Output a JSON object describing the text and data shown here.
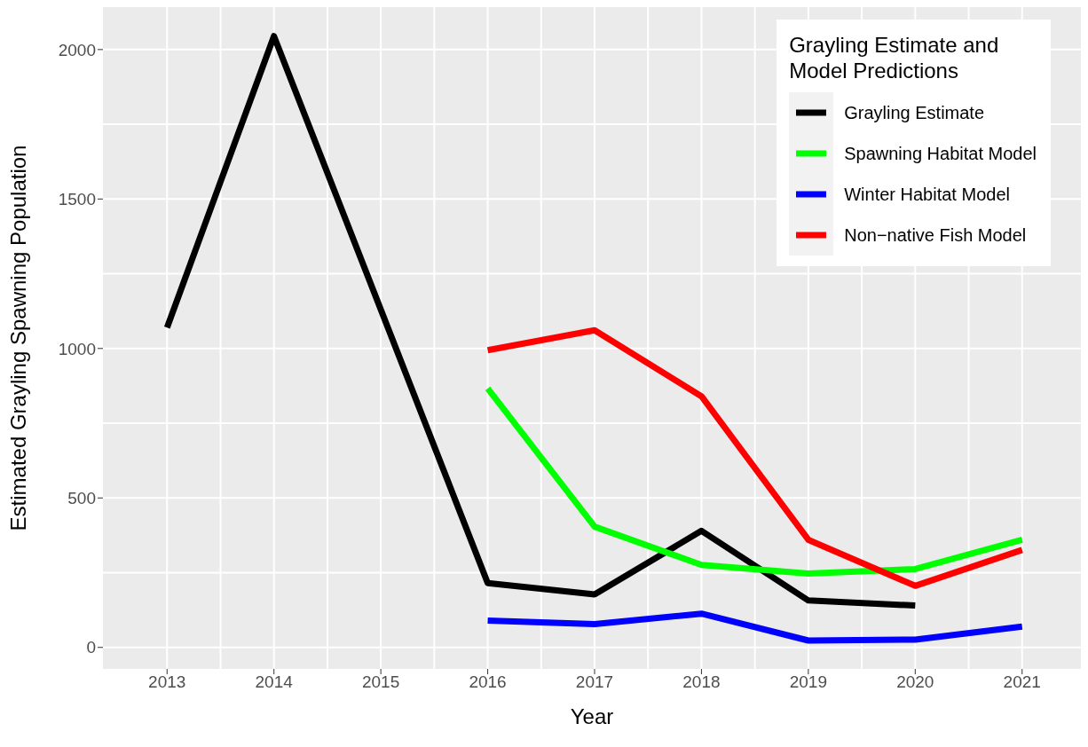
{
  "chart_data": {
    "type": "line",
    "xlabel": "Year",
    "ylabel": "Estimated Grayling Spawning Population",
    "legend_title": "Grayling Estimate and\nModel Predictions",
    "x": [
      2013,
      2014,
      2015,
      2016,
      2017,
      2018,
      2019,
      2020,
      2021
    ],
    "series": [
      {
        "name": "Grayling Estimate",
        "color": "#000000",
        "values": [
          1070,
          2045,
          1130,
          215,
          177,
          390,
          157,
          140,
          null
        ]
      },
      {
        "name": "Spawning Habitat Model",
        "color": "#00ff00",
        "values": [
          null,
          null,
          null,
          866,
          404,
          276,
          247,
          262,
          360
        ]
      },
      {
        "name": "Winter Habitat Model",
        "color": "#0000ff",
        "values": [
          null,
          null,
          null,
          90,
          78,
          113,
          23,
          26,
          70
        ]
      },
      {
        "name": "Non−native Fish Model",
        "color": "#ff0000",
        "values": [
          null,
          null,
          null,
          994,
          1061,
          840,
          360,
          206,
          326
        ]
      }
    ],
    "xlim": [
      2012.4,
      2021.55
    ],
    "xticks": [
      2013,
      2014,
      2015,
      2016,
      2017,
      2018,
      2019,
      2020,
      2021
    ],
    "ylim": [
      -72,
      2142
    ],
    "yticks": [
      0,
      500,
      1000,
      1500,
      2000
    ],
    "grid": true,
    "legend": "top right",
    "marker": "none",
    "line_style": "solid"
  }
}
